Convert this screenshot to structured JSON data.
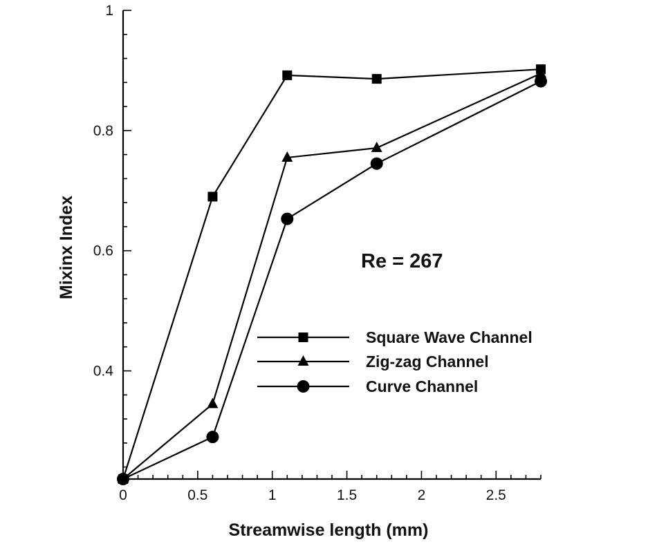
{
  "chart_data": {
    "type": "line",
    "title": "",
    "xlabel": "Streamwise length (mm)",
    "ylabel": "Mixinx Index",
    "xlim": [
      0,
      2.8
    ],
    "ylim": [
      0.22,
      1.0
    ],
    "x_ticks": [
      0,
      0.5,
      1,
      1.5,
      2,
      2.5
    ],
    "x_tick_labels": [
      "0",
      "0.5",
      "1",
      "1.5",
      "2",
      "2.5"
    ],
    "y_ticks": [
      0.4,
      0.6,
      0.8,
      1.0
    ],
    "y_tick_labels": [
      "0.4",
      "0.6",
      "0.8",
      "1"
    ],
    "grid": false,
    "legend_position": "center-right",
    "annotation": "Re = 267",
    "x": [
      0,
      0.6,
      1.1,
      1.7,
      2.8
    ],
    "series": [
      {
        "name": "Square Wave Channel",
        "marker": "square",
        "values": [
          0.22,
          0.69,
          0.892,
          0.886,
          0.902
        ]
      },
      {
        "name": "Zig-zag Channel",
        "marker": "triangle",
        "values": [
          0.22,
          0.345,
          0.755,
          0.771,
          0.895
        ]
      },
      {
        "name": "Curve Channel",
        "marker": "circle",
        "values": [
          0.22,
          0.29,
          0.653,
          0.745,
          0.882
        ]
      }
    ],
    "line_color": "#000000"
  }
}
